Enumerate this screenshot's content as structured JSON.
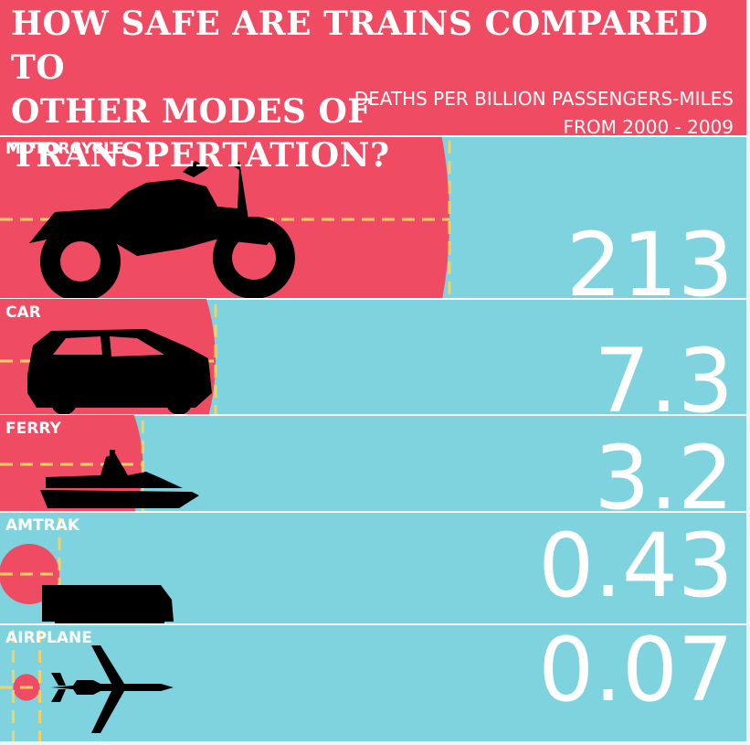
{
  "header": {
    "title_line1": "HOW SAFE ARE TRAINS COMPARED TO",
    "title_line2": "OTHER MODES OF TRANSPERTATION?",
    "subtitle": "DEATHS PER BILLION PASSENGERS-MILES",
    "period": "FROM 2000 - 2009"
  },
  "colors": {
    "background": "#7fd3df",
    "accent": "#ef4c63",
    "guide": "#f7d160",
    "silhouette": "#000000",
    "text": "#ffffff"
  },
  "chart_data": {
    "type": "bar",
    "title": "HOW SAFE ARE TRAINS COMPARED TO OTHER MODES OF TRANSPERTATION?",
    "subtitle": "DEATHS PER BILLION PASSENGERS-MILES",
    "period": "FROM 2000 - 2009",
    "categories": [
      "MOTORCYCLE",
      "CAR",
      "FERRY",
      "AMTRAK",
      "AIRPLANE"
    ],
    "values": [
      213,
      7.3,
      3.2,
      0.43,
      0.07
    ],
    "value_labels": [
      "213",
      "7.3",
      "3.2",
      "0.43",
      "0.07"
    ],
    "icons": [
      "motorcycle-icon",
      "car-icon",
      "ferry-icon",
      "train-icon",
      "airplane-icon"
    ],
    "encoding": "circle size"
  }
}
